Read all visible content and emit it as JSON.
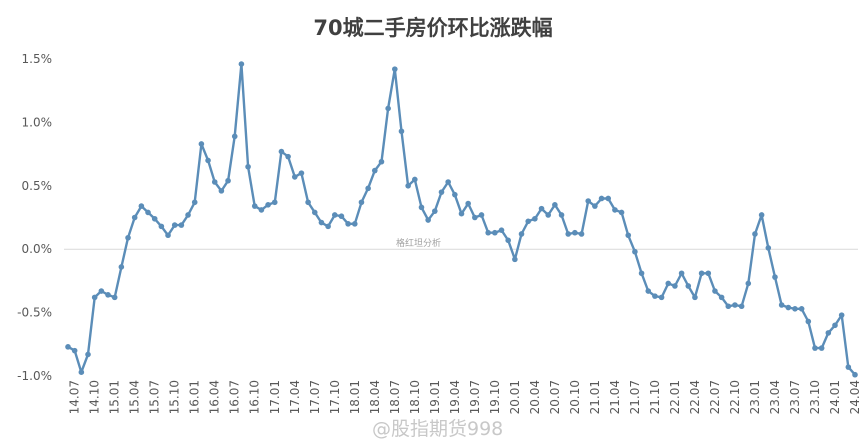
{
  "chart_data": {
    "type": "line",
    "title": "70城二手房价环比涨跌幅",
    "xlabel": "",
    "ylabel": "",
    "ylim": [
      -1.0,
      1.5
    ],
    "y_ticks": [
      "1.5%",
      "1.0%",
      "0.5%",
      "0.0%",
      "-0.5%",
      "-1.0%"
    ],
    "y_tick_values": [
      1.5,
      1.0,
      0.5,
      0.0,
      -0.5,
      -1.0
    ],
    "x_tick_labels": [
      "14.07",
      "14.10",
      "15.01",
      "15.04",
      "15.07",
      "15.10",
      "16.01",
      "16.04",
      "16.07",
      "16.10",
      "17.01",
      "17.04",
      "17.07",
      "17.10",
      "18.01",
      "18.04",
      "18.07",
      "18.10",
      "19.01",
      "19.04",
      "19.07",
      "19.10",
      "20.01",
      "20.04",
      "20.07",
      "20.10",
      "21.01",
      "21.04",
      "21.07",
      "21.10",
      "22.01",
      "22.04",
      "22.07",
      "22.10",
      "23.01",
      "23.04",
      "23.07",
      "23.10",
      "24.01",
      "24.04"
    ],
    "grid": false,
    "legend": "none",
    "line_color": "#5b8db8",
    "series": [
      {
        "start": "2014.06",
        "values": [
          -0.77,
          -0.8,
          -0.97,
          -0.83,
          -0.38,
          -0.33,
          -0.36,
          -0.38,
          -0.14,
          0.09,
          0.25,
          0.34,
          0.29,
          0.24,
          0.18,
          0.11,
          0.19,
          0.19,
          0.27,
          0.37,
          0.83,
          0.7,
          0.53,
          0.46,
          0.54,
          0.89,
          1.46,
          0.65,
          0.34,
          0.31,
          0.35,
          0.37,
          0.77,
          0.73,
          0.57,
          0.6,
          0.37,
          0.29,
          0.21,
          0.18,
          0.27,
          0.26,
          0.2,
          0.2,
          0.37,
          0.48,
          0.62,
          0.69,
          1.11,
          1.42,
          0.93,
          0.5,
          0.55,
          0.33,
          0.23,
          0.3,
          0.45,
          0.53,
          0.43,
          0.28,
          0.36,
          0.25,
          0.27,
          0.13,
          0.13,
          0.15,
          0.07,
          -0.08,
          0.12,
          0.22,
          0.24,
          0.32,
          0.27,
          0.35,
          0.27,
          0.12,
          0.13,
          0.12,
          0.38,
          0.34,
          0.4,
          0.4,
          0.31,
          0.29,
          0.11,
          -0.02,
          -0.19,
          -0.33,
          -0.37,
          -0.38,
          -0.27,
          -0.29,
          -0.19,
          -0.29,
          -0.38,
          -0.19,
          -0.19,
          -0.33,
          -0.38,
          -0.45,
          -0.44,
          -0.45,
          -0.27,
          0.12,
          0.27,
          0.01,
          -0.22,
          -0.44,
          -0.46,
          -0.47,
          -0.47,
          -0.57,
          -0.78,
          -0.78,
          -0.66,
          -0.6,
          -0.52,
          -0.93,
          -0.99
        ]
      }
    ]
  },
  "watermarks": {
    "center": "格红坦分析",
    "bottom": "@股指期货998"
  }
}
